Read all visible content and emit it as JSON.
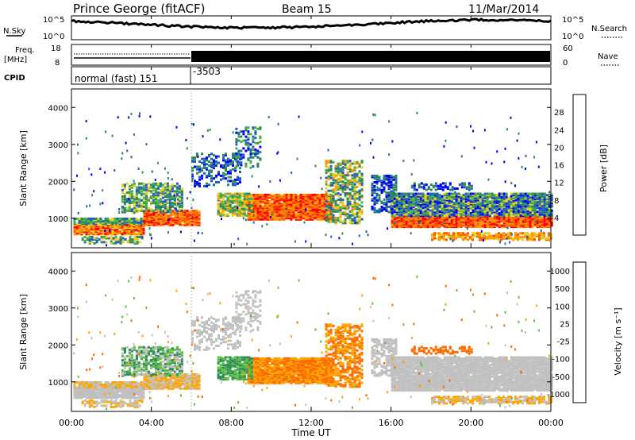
{
  "header": {
    "station": "Prince George (fitACF)",
    "beam": "Beam 15",
    "date": "11/Mar/2014"
  },
  "top_panels": {
    "nsky_label": "N.Sky",
    "nsky_tick_hi": "10^5",
    "nsky_tick_lo": "10^0",
    "nsearch_label": "N.Search",
    "nsearch_tick_hi": "10^5",
    "nsearch_tick_lo": "10^0",
    "freq_label_1": "Freq.",
    "freq_label_2": "[MHz]",
    "freq_tick_hi": "18",
    "freq_tick_lo": "8",
    "nave_label": "Nave",
    "nave_tick_hi": "60",
    "nave_tick_lo": "0",
    "cpid_label": "CPID",
    "cpid_mode_1": "normal (fast) 151",
    "cpid_mode_2": "-3503"
  },
  "axes": {
    "ylabel": "Slant Range [km]",
    "yticks": [
      "1000",
      "2000",
      "3000",
      "4000"
    ],
    "xlabel": "Time UT",
    "xticks": [
      "00:00",
      "04:00",
      "08:00",
      "12:00",
      "16:00",
      "20:00",
      "00:00"
    ]
  },
  "power_scale": {
    "label": "Power [dB]",
    "ticks": [
      "4",
      "8",
      "12",
      "16",
      "20",
      "24",
      "28"
    ],
    "colors": [
      "#0000ff",
      "#1f5fbf",
      "#2e8b57",
      "#45b045",
      "#e8d02a",
      "#ff9900",
      "#ff5a00",
      "#ff0000"
    ]
  },
  "velocity_scale": {
    "label": "Velocity [m s⁻¹]",
    "ticks": [
      "1000",
      "500",
      "100",
      "25",
      "-25",
      "-100",
      "-500",
      "-1000"
    ],
    "colors": [
      "#2030b0",
      "#3d80c8",
      "#2e8b57",
      "#5dc040",
      "#c0c0c0",
      "#ffa500",
      "#ff6a00",
      "#ff0000"
    ]
  },
  "chart_data": [
    {
      "type": "heatmap",
      "title": "Power",
      "xlabel": "Time UT",
      "ylabel": "Slant Range [km]",
      "x_range": [
        "00:00",
        "24:00"
      ],
      "ylim": [
        200,
        4500
      ],
      "colorbar": {
        "label": "Power [dB]",
        "range": [
          0,
          32
        ],
        "ticks": [
          4,
          8,
          12,
          16,
          20,
          24,
          28
        ]
      },
      "features": [
        {
          "time": "00:00-03:30",
          "range_km": [
            600,
            900
          ],
          "power_db": "16-28"
        },
        {
          "time": "04:30-06:30",
          "range_km": [
            900,
            1200
          ],
          "power_db": "24-30"
        },
        {
          "time": "09:00-13:00",
          "range_km": [
            1000,
            1700
          ],
          "power_db": "20-30"
        },
        {
          "time": "16:00-24:00",
          "range_km": [
            800,
            1700
          ],
          "power_db": "8-28"
        }
      ]
    },
    {
      "type": "heatmap",
      "title": "Velocity",
      "xlabel": "Time UT",
      "ylabel": "Slant Range [km]",
      "x_range": [
        "00:00",
        "24:00"
      ],
      "ylim": [
        200,
        4500
      ],
      "colorbar": {
        "label": "Velocity [m s-1]",
        "ticks": [
          1000,
          500,
          100,
          25,
          -25,
          -100,
          -500,
          -1000
        ]
      },
      "features": [
        {
          "time": "00:00-04:00",
          "range_km": [
            500,
            1000
          ],
          "velocity": "-25 to 25 (ground scatter)"
        },
        {
          "time": "07:30-13:00",
          "range_km": [
            1000,
            1700
          ],
          "velocity": "-100 to -500"
        },
        {
          "time": "16:00-24:00",
          "range_km": [
            800,
            1600
          ],
          "velocity": "-25 to 25 (ground scatter)"
        }
      ]
    }
  ]
}
